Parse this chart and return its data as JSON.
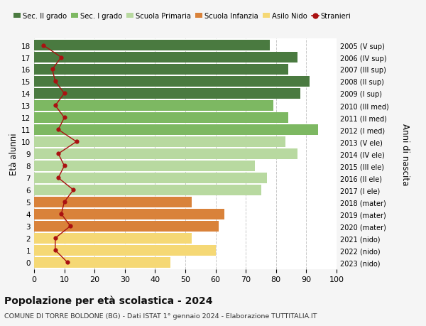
{
  "ages": [
    18,
    17,
    16,
    15,
    14,
    13,
    12,
    11,
    10,
    9,
    8,
    7,
    6,
    5,
    4,
    3,
    2,
    1,
    0
  ],
  "right_labels": [
    "2005 (V sup)",
    "2006 (IV sup)",
    "2007 (III sup)",
    "2008 (II sup)",
    "2009 (I sup)",
    "2010 (III med)",
    "2011 (II med)",
    "2012 (I med)",
    "2013 (V ele)",
    "2014 (IV ele)",
    "2015 (III ele)",
    "2016 (II ele)",
    "2017 (I ele)",
    "2018 (mater)",
    "2019 (mater)",
    "2020 (mater)",
    "2021 (nido)",
    "2022 (nido)",
    "2023 (nido)"
  ],
  "bar_values": [
    78,
    87,
    84,
    91,
    88,
    79,
    84,
    94,
    83,
    87,
    73,
    77,
    75,
    52,
    63,
    61,
    52,
    60,
    45
  ],
  "bar_colors": [
    "#4a7a40",
    "#4a7a40",
    "#4a7a40",
    "#4a7a40",
    "#4a7a40",
    "#7db862",
    "#7db862",
    "#7db862",
    "#b8d9a0",
    "#b8d9a0",
    "#b8d9a0",
    "#b8d9a0",
    "#b8d9a0",
    "#d9823a",
    "#d9823a",
    "#d9823a",
    "#f5d875",
    "#f5d875",
    "#f5d875"
  ],
  "stranieri_values": [
    3,
    9,
    6,
    7,
    10,
    7,
    10,
    8,
    14,
    8,
    10,
    8,
    13,
    10,
    9,
    12,
    7,
    7,
    11
  ],
  "legend_items": [
    {
      "label": "Sec. II grado",
      "color": "#4a7a40"
    },
    {
      "label": "Sec. I grado",
      "color": "#7db862"
    },
    {
      "label": "Scuola Primaria",
      "color": "#b8d9a0"
    },
    {
      "label": "Scuola Infanzia",
      "color": "#d9823a"
    },
    {
      "label": "Asilo Nido",
      "color": "#f5d875"
    },
    {
      "label": "Stranieri",
      "color": "#aa1111"
    }
  ],
  "ylabel": "Età alunni",
  "right_ylabel": "Anni di nascita",
  "title": "Popolazione per età scolastica - 2024",
  "subtitle": "COMUNE DI TORRE BOLDONE (BG) - Dati ISTAT 1° gennaio 2024 - Elaborazione TUTTITALIA.IT",
  "xlim": [
    0,
    100
  ],
  "background_color": "#f5f5f5",
  "bar_background": "#ffffff",
  "grid_color": "#c8c8c8"
}
